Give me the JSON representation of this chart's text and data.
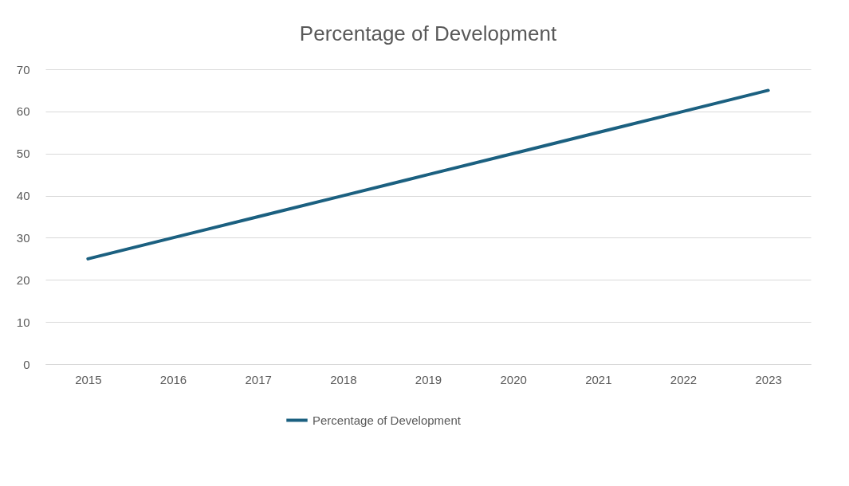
{
  "chart_data": {
    "type": "line",
    "title": "Percentage of Development",
    "categories": [
      "2015",
      "2016",
      "2017",
      "2018",
      "2019",
      "2020",
      "2021",
      "2022",
      "2023"
    ],
    "series": [
      {
        "name": "Percentage of Development",
        "color": "#1b6080",
        "values": [
          25,
          30,
          35,
          40,
          45,
          50,
          55,
          60,
          65
        ]
      }
    ],
    "ylim": [
      0,
      70
    ],
    "yticks": [
      0,
      10,
      20,
      30,
      40,
      50,
      60,
      70
    ],
    "grid": "y",
    "legend": "bottom",
    "marker": "none",
    "line_style": "solid"
  }
}
